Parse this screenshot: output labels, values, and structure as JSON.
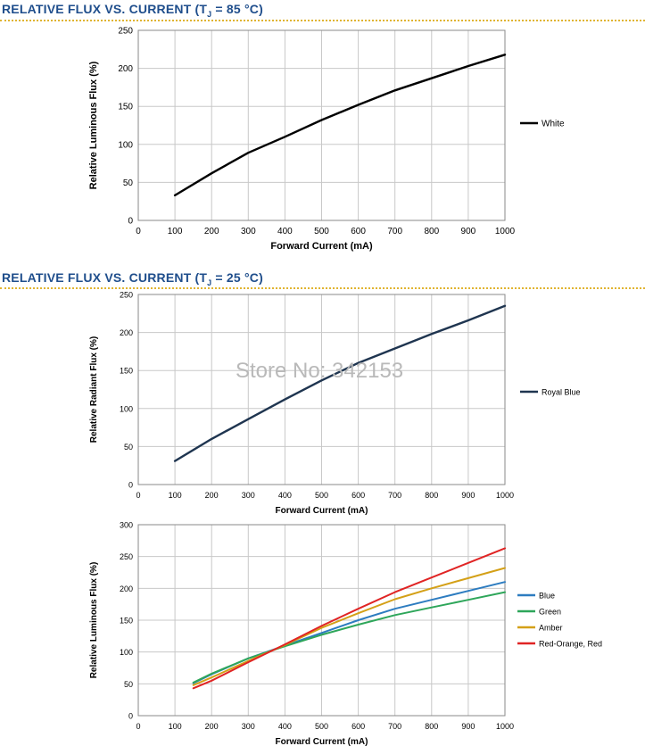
{
  "sections": [
    {
      "title_prefix": "RELATIVE FLUX VS. CURRENT (T",
      "title_sub": "J",
      "title_suffix": " = 85 °C)"
    },
    {
      "title_prefix": "RELATIVE FLUX VS. CURRENT (T",
      "title_sub": "J",
      "title_suffix": " = 25 °C)"
    }
  ],
  "watermark": "Store No: 342153",
  "chart_data": [
    {
      "type": "line",
      "title": "RELATIVE FLUX VS. CURRENT (TJ = 85 °C)",
      "xlabel": "Forward Current (mA)",
      "ylabel": "Relative Luminous Flux (%)",
      "xlim": [
        0,
        1000
      ],
      "ylim": [
        0,
        250
      ],
      "xticks": [
        0,
        100,
        200,
        300,
        400,
        500,
        600,
        700,
        800,
        900,
        1000
      ],
      "yticks": [
        0,
        50,
        100,
        150,
        200,
        250
      ],
      "grid": true,
      "legend_position": "right",
      "series": [
        {
          "name": "White",
          "color": "#000000",
          "x": [
            100,
            200,
            300,
            400,
            500,
            600,
            700,
            800,
            900,
            1000
          ],
          "y": [
            33,
            62,
            89,
            110,
            132,
            152,
            171,
            187,
            203,
            218
          ]
        }
      ]
    },
    {
      "type": "line",
      "title": "RELATIVE FLUX VS. CURRENT (TJ = 25 °C)",
      "xlabel": "Forward Current (mA)",
      "ylabel": "Relative Radiant Flux (%)",
      "xlim": [
        0,
        1000
      ],
      "ylim": [
        0,
        250
      ],
      "xticks": [
        0,
        100,
        200,
        300,
        400,
        500,
        600,
        700,
        800,
        900,
        1000
      ],
      "yticks": [
        0,
        50,
        100,
        150,
        200,
        250
      ],
      "grid": true,
      "legend_position": "right",
      "series": [
        {
          "name": "Royal Blue",
          "color": "#1f3550",
          "x": [
            100,
            200,
            300,
            400,
            500,
            600,
            700,
            800,
            900,
            1000
          ],
          "y": [
            31,
            60,
            86,
            112,
            137,
            160,
            179,
            198,
            216,
            235
          ]
        }
      ]
    },
    {
      "type": "line",
      "title": "",
      "xlabel": "Forward Current (mA)",
      "ylabel": "Relative Luminous Flux (%)",
      "xlim": [
        0,
        1000
      ],
      "ylim": [
        0,
        300
      ],
      "xticks": [
        0,
        100,
        200,
        300,
        400,
        500,
        600,
        700,
        800,
        900,
        1000
      ],
      "yticks": [
        0,
        50,
        100,
        150,
        200,
        250,
        300
      ],
      "grid": true,
      "legend_position": "right",
      "series": [
        {
          "name": "Blue",
          "color": "#2d7cc0",
          "x": [
            150,
            200,
            300,
            400,
            500,
            600,
            700,
            800,
            900,
            1000
          ],
          "y": [
            51,
            65,
            90,
            110,
            130,
            150,
            168,
            182,
            196,
            210
          ]
        },
        {
          "name": "Green",
          "color": "#2ea65a",
          "x": [
            150,
            200,
            300,
            400,
            500,
            600,
            700,
            800,
            900,
            1000
          ],
          "y": [
            52,
            66,
            90,
            109,
            127,
            143,
            158,
            170,
            182,
            194
          ]
        },
        {
          "name": "Amber",
          "color": "#d4a017",
          "x": [
            150,
            200,
            300,
            400,
            500,
            600,
            700,
            800,
            900,
            1000
          ],
          "y": [
            48,
            60,
            86,
            111,
            138,
            161,
            183,
            200,
            216,
            232
          ]
        },
        {
          "name": "Red-Orange, Red",
          "color": "#e02424",
          "x": [
            150,
            200,
            300,
            400,
            500,
            600,
            700,
            800,
            900,
            1000
          ],
          "y": [
            43,
            55,
            84,
            112,
            141,
            168,
            194,
            217,
            240,
            263
          ]
        }
      ]
    }
  ]
}
